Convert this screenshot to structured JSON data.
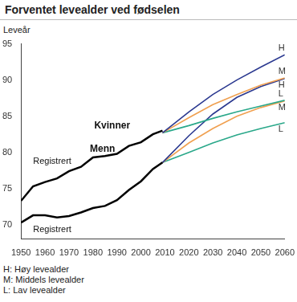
{
  "chart_data": {
    "type": "line",
    "title": "Forventet levealder ved fødselen",
    "y_label": "Leveår",
    "x": [
      1950,
      1955,
      1960,
      1965,
      1970,
      1975,
      1980,
      1985,
      1990,
      1995,
      2000,
      2005,
      2009,
      2020,
      2030,
      2040,
      2050,
      2060
    ],
    "xlim": [
      1950,
      2060
    ],
    "xticks": [
      1950,
      1960,
      1970,
      1980,
      1990,
      2000,
      2010,
      2020,
      2030,
      2040,
      2050,
      2060
    ],
    "ylim": [
      68,
      95
    ],
    "yticks": [
      70,
      75,
      80,
      85,
      90,
      95
    ],
    "grid": false,
    "series": [
      {
        "name": "Registrert",
        "color": "#000000",
        "values": [
          73.3,
          75.3,
          75.9,
          76.4,
          77.4,
          78.0,
          79.3,
          79.5,
          79.8,
          80.9,
          81.4,
          82.5,
          83.0,
          null,
          null,
          null,
          null,
          null
        ]
      },
      {
        "name": "Registrert",
        "color": "#000000",
        "values": [
          70.3,
          71.3,
          71.3,
          71.0,
          71.2,
          71.7,
          72.3,
          72.6,
          73.4,
          74.8,
          76.0,
          77.7,
          78.6,
          null,
          null,
          null,
          null,
          null
        ]
      },
      {
        "name": "H",
        "color": "#2b3990",
        "values": [
          null,
          null,
          null,
          null,
          null,
          null,
          null,
          null,
          null,
          null,
          null,
          null,
          82.7,
          85.6,
          88.0,
          90.0,
          91.8,
          93.5
        ]
      },
      {
        "name": "M",
        "color": "#f0a050",
        "values": [
          null,
          null,
          null,
          null,
          null,
          null,
          null,
          null,
          null,
          null,
          null,
          null,
          82.7,
          84.8,
          86.6,
          88.0,
          89.3,
          90.3
        ]
      },
      {
        "name": "L",
        "color": "#2aa88a",
        "values": [
          null,
          null,
          null,
          null,
          null,
          null,
          null,
          null,
          null,
          null,
          null,
          null,
          82.7,
          83.7,
          84.7,
          85.6,
          86.4,
          87.2
        ]
      },
      {
        "name": "H",
        "color": "#2b3990",
        "values": [
          null,
          null,
          null,
          null,
          null,
          null,
          null,
          null,
          null,
          null,
          null,
          null,
          78.6,
          82.3,
          85.3,
          87.6,
          89.1,
          90.2
        ]
      },
      {
        "name": "M",
        "color": "#f0a050",
        "values": [
          null,
          null,
          null,
          null,
          null,
          null,
          null,
          null,
          null,
          null,
          null,
          null,
          78.6,
          81.3,
          83.3,
          85.0,
          86.2,
          87.1
        ]
      },
      {
        "name": "L",
        "color": "#2aa88a",
        "values": [
          null,
          null,
          null,
          null,
          null,
          null,
          null,
          null,
          null,
          null,
          null,
          null,
          78.6,
          80.0,
          81.3,
          82.4,
          83.3,
          84.1
        ]
      }
    ],
    "annotations": [
      {
        "text": "Kvinner",
        "x": 1988,
        "y": 83.7
      },
      {
        "text": "Menn",
        "x": 1984,
        "y": 80.4
      },
      {
        "text": "Registrert",
        "x": 1963,
        "y": 78.8
      },
      {
        "text": "Registrert",
        "x": 1963,
        "y": 69.3
      }
    ],
    "footnotes": [
      "H: Høy levealder",
      "M: Middels levealder",
      "L: Lav levealder"
    ]
  }
}
